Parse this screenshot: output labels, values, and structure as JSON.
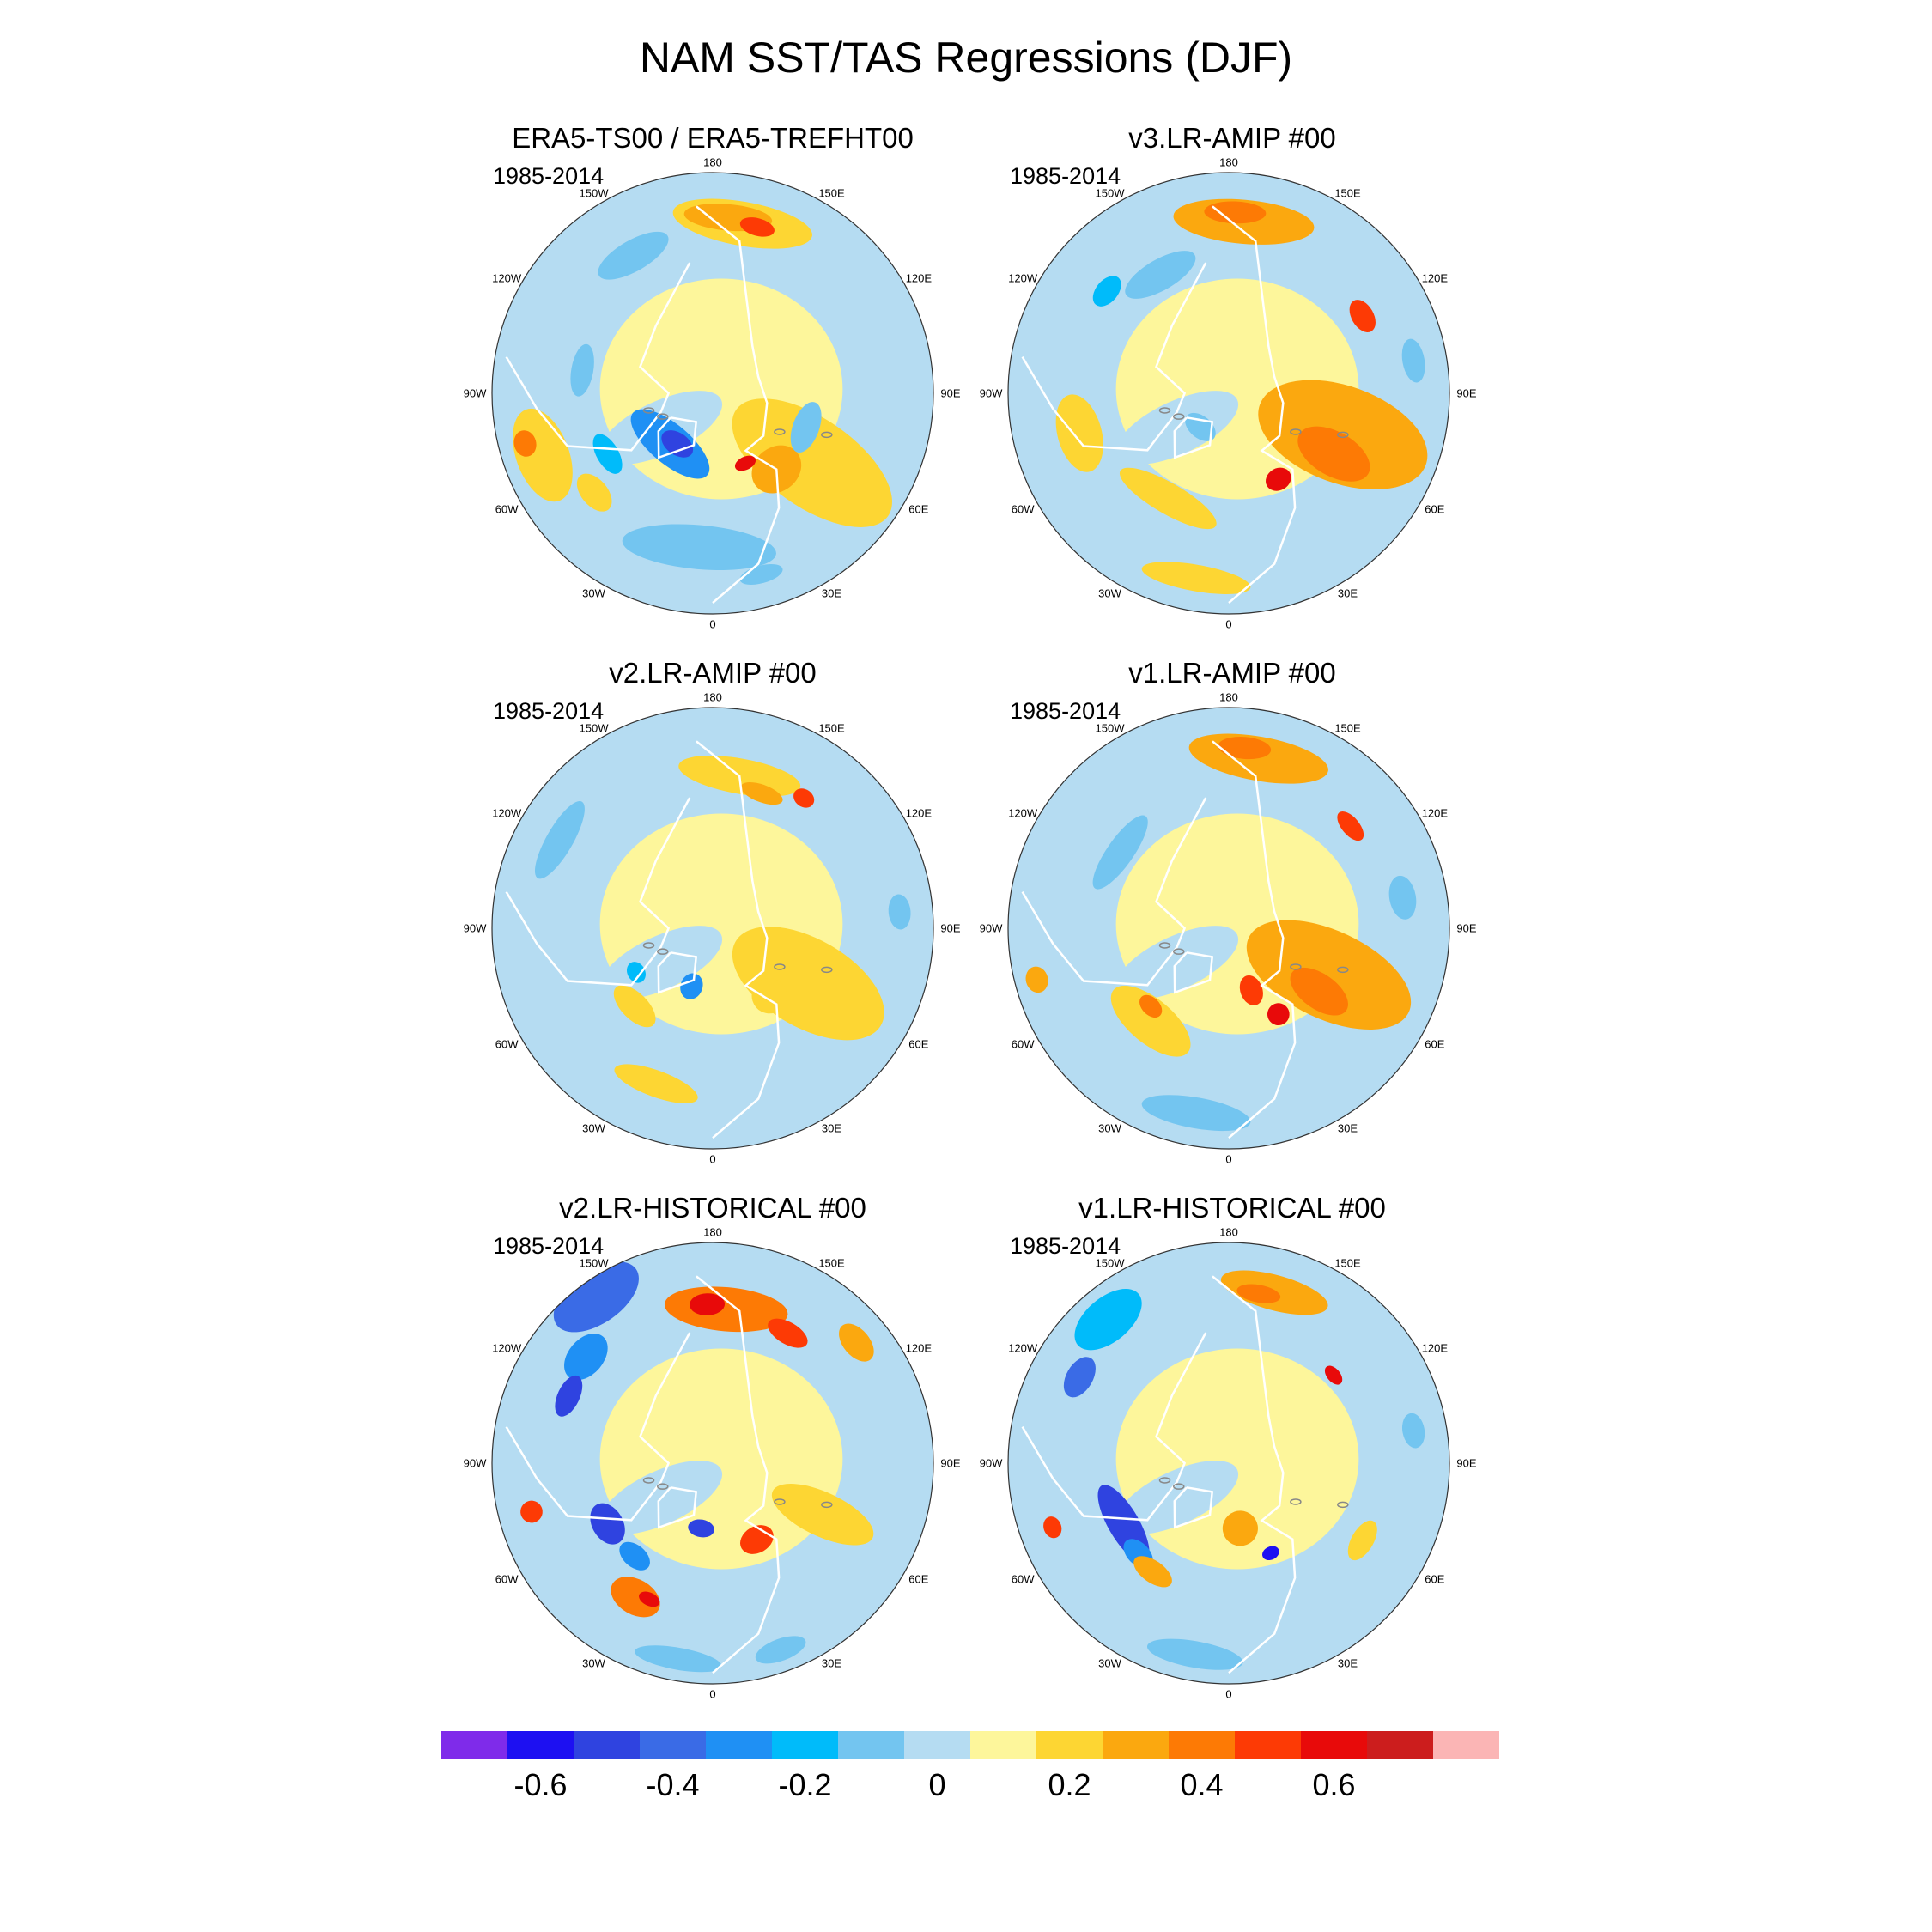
{
  "title": "NAM SST/TAS Regressions (DJF)",
  "period": "1985-2014",
  "lon_labels": [
    "180",
    "150E",
    "120E",
    "90E",
    "60E",
    "30E",
    "0",
    "30W",
    "60W",
    "90W",
    "120W",
    "150W"
  ],
  "panels": [
    {
      "name": "era5",
      "title": "ERA5-TS00 / ERA5-TREFHT00"
    },
    {
      "name": "v3-amip",
      "title": "v3.LR-AMIP  #00"
    },
    {
      "name": "v2-amip",
      "title": "v2.LR-AMIP  #00"
    },
    {
      "name": "v1-amip",
      "title": "v1.LR-AMIP  #00"
    },
    {
      "name": "v2-historical",
      "title": "v2.LR-HISTORICAL  #00"
    },
    {
      "name": "v1-historical",
      "title": "v1.LR-HISTORICAL  #00"
    }
  ],
  "colorbar": {
    "colors": [
      "#7f2bea",
      "#1d10f2",
      "#2f43e0",
      "#3a6be6",
      "#1f90f4",
      "#00bbfa",
      "#73c5f0",
      "#b5dcf2",
      "#fdf69b",
      "#fdd633",
      "#fba80f",
      "#fd7a05",
      "#fd3a05",
      "#e80a0a",
      "#cc1d1d",
      "#fbb5b5"
    ],
    "labels": [
      "-0.6",
      "-0.4",
      "-0.2",
      "0",
      "0.2",
      "0.4",
      "0.6"
    ]
  },
  "map_colors": {
    "coast": "#ffffff",
    "lakes": "#888888",
    "border": "#333333"
  }
}
